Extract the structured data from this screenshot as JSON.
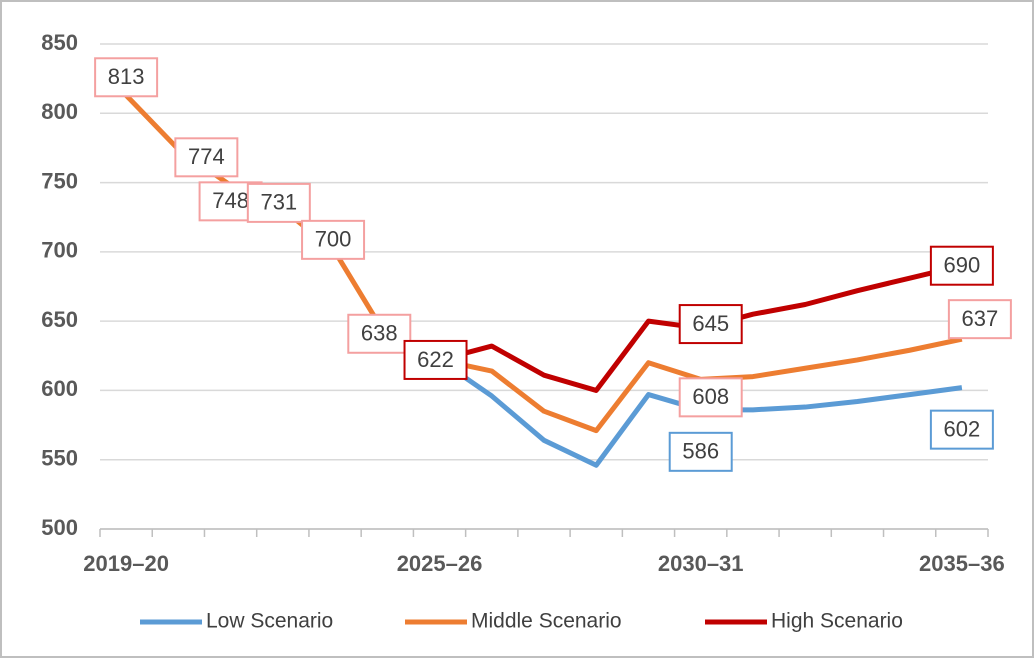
{
  "chart_data": {
    "type": "line",
    "categories": [
      "2019–20",
      null,
      null,
      null,
      null,
      null,
      "2025–26",
      null,
      null,
      null,
      null,
      "2030–31",
      null,
      null,
      null,
      null,
      "2035–36"
    ],
    "series": [
      {
        "name": "Low Scenario",
        "color": "#5b9bd5",
        "values": [
          null,
          null,
          null,
          null,
          null,
          null,
          622,
          596,
          564,
          546,
          597,
          586,
          586,
          588,
          592,
          597,
          602
        ],
        "value_labels": [
          null,
          null,
          null,
          null,
          null,
          null,
          null,
          null,
          null,
          null,
          null,
          "586",
          null,
          null,
          null,
          null,
          "602"
        ]
      },
      {
        "name": "Middle Scenario",
        "color": "#ed7d31",
        "values": [
          813,
          774,
          748,
          731,
          700,
          638,
          622,
          614,
          585,
          571,
          620,
          608,
          610,
          616,
          622,
          629,
          637
        ],
        "value_labels": [
          "813",
          "774",
          "748",
          "731",
          "700",
          "638",
          null,
          null,
          null,
          null,
          null,
          "608",
          null,
          null,
          null,
          null,
          "637"
        ]
      },
      {
        "name": "High Scenario",
        "color": "#c00000",
        "values": [
          null,
          null,
          null,
          null,
          null,
          null,
          622,
          632,
          611,
          600,
          650,
          645,
          655,
          662,
          672,
          681,
          690
        ],
        "value_labels": [
          null,
          null,
          null,
          null,
          null,
          null,
          "622",
          null,
          null,
          null,
          null,
          "645",
          null,
          null,
          null,
          null,
          "690"
        ]
      }
    ],
    "ylim": [
      500,
      850
    ],
    "yticks": [
      500,
      550,
      600,
      650,
      700,
      750,
      800,
      850
    ],
    "grid": true,
    "legend": "bottom"
  }
}
